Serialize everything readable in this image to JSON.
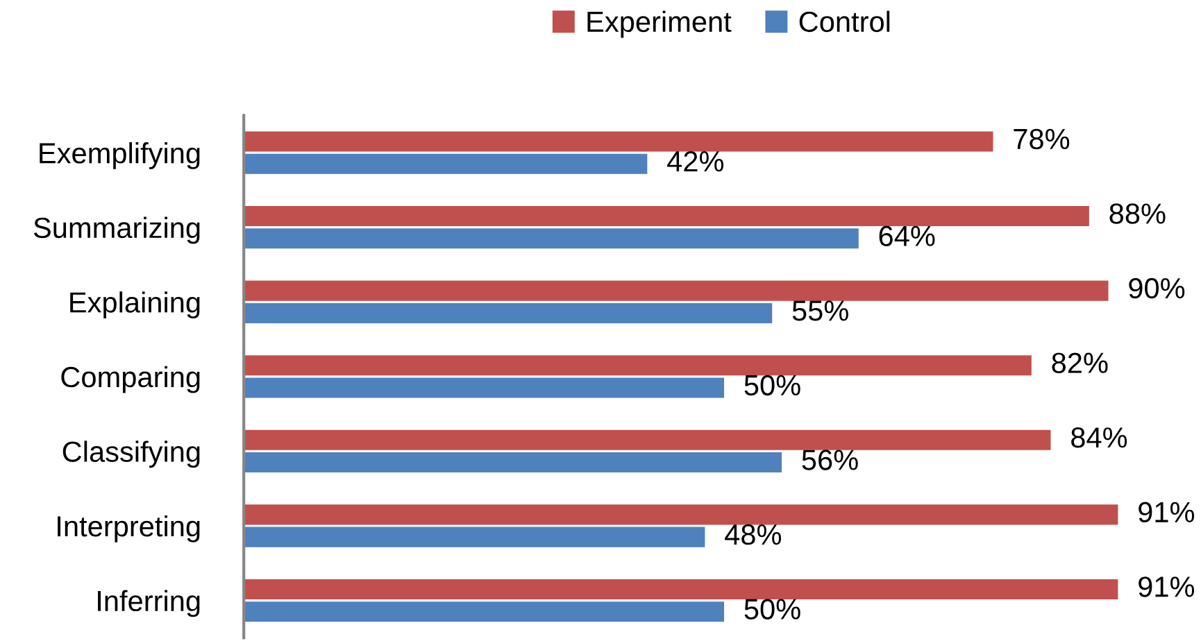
{
  "chart_data": {
    "type": "bar",
    "orientation": "horizontal",
    "categories": [
      "Exemplifying",
      "Summarizing",
      "Explaining",
      "Comparing",
      "Classifying",
      "Interpreting",
      "Inferring"
    ],
    "series": [
      {
        "name": "Experiment",
        "color": "#c0504d",
        "values": [
          78,
          88,
          90,
          82,
          84,
          91,
          91
        ],
        "value_labels": [
          "78%",
          "88%",
          "90%",
          "82%",
          "84%",
          "91%",
          "91%"
        ]
      },
      {
        "name": "Control",
        "color": "#4f81bd",
        "values": [
          42,
          64,
          55,
          50,
          56,
          48,
          50
        ],
        "value_labels": [
          "42%",
          "64%",
          "55%",
          "50%",
          "56%",
          "48%",
          "50%"
        ]
      }
    ],
    "legend": "top",
    "grid": false,
    "tick_labels": "y"
  }
}
